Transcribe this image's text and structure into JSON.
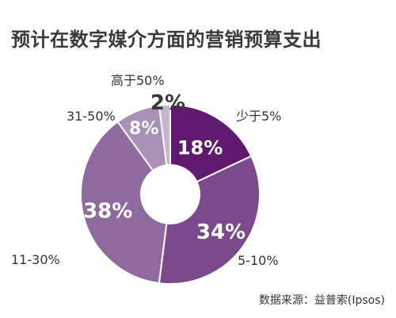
{
  "chart_data": {
    "type": "pie",
    "title": "预计在数字媒介方面的营销预算支出",
    "categories": [
      "少于5%",
      "5-10%",
      "11-30%",
      "31-50%",
      "高于50%"
    ],
    "values": [
      18,
      34,
      38,
      8,
      2
    ],
    "value_labels": [
      "18%",
      "34%",
      "38%",
      "8%",
      "2%"
    ],
    "colors": [
      "#5e1a6e",
      "#7b4a8c",
      "#8f6a9f",
      "#a890b6",
      "#c7b6d2"
    ],
    "donut": true,
    "source": "数据来源：益普索(Ipsos)"
  }
}
